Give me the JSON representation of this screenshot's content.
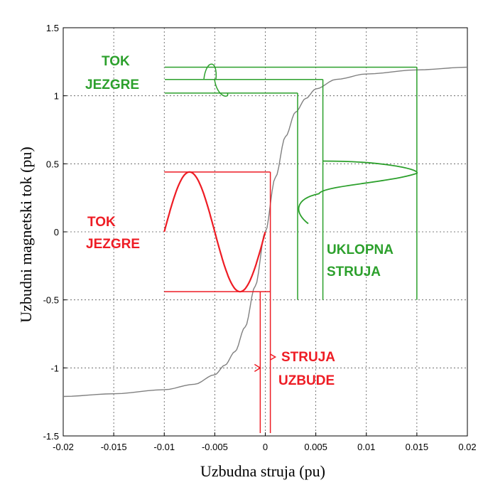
{
  "chart_data": {
    "type": "line",
    "title": "",
    "xlabel": "Uzbudna struja (pu)",
    "ylabel": "Uzbudni magnetski tok (pu)",
    "xlim": [
      -0.02,
      0.02
    ],
    "ylim": [
      -1.5,
      1.5
    ],
    "x_ticks": [
      -0.02,
      -0.015,
      -0.01,
      -0.005,
      0,
      0.005,
      0.01,
      0.015,
      0.02
    ],
    "y_ticks": [
      -1.5,
      -1,
      -0.5,
      0,
      0.5,
      1,
      1.5
    ],
    "x_tick_labels": [
      "-0.02",
      "-0.015",
      "-0.01",
      "-0.005",
      "0",
      "0.005",
      "0.01",
      "0.015",
      "0.02"
    ],
    "y_tick_labels": [
      "-1.5",
      "-1",
      "-0.5",
      "0",
      "0.5",
      "1",
      "1.5"
    ],
    "grid": true,
    "series": [
      {
        "color": "#808080",
        "x": [
          -0.02,
          -0.015,
          -0.01,
          -0.007,
          -0.005,
          -0.004,
          -0.003,
          -0.002,
          -0.001,
          0,
          0.001,
          0.002,
          0.003,
          0.004,
          0.005,
          0.007,
          0.01,
          0.015,
          0.02
        ],
        "y": [
          -1.21,
          -1.19,
          -1.16,
          -1.12,
          -1.05,
          -0.98,
          -0.88,
          -0.7,
          -0.4,
          0,
          0.4,
          0.7,
          0.88,
          0.98,
          1.05,
          1.12,
          1.16,
          1.19,
          1.21
        ]
      }
    ],
    "annotations": {
      "steady": {
        "color": "#ee1c24",
        "flux_amplitude": 0.44,
        "current_lines_x": [
          -0.0005,
          0.0005
        ],
        "wave_x_range": [
          -0.01,
          0
        ],
        "text_flux": [
          "TOK",
          "JEZGRE"
        ],
        "text_current": [
          "STRUJA",
          "UZBUDE"
        ]
      },
      "inrush": {
        "color": "#2ca02c",
        "flux_levels": [
          1.21,
          1.12,
          1.02
        ],
        "current_lines_x": [
          0.0032,
          0.0057,
          0.015
        ],
        "text_flux": [
          "TOK",
          "JEZGRE"
        ],
        "text_current": [
          "UKLOPNA",
          "STRUJA"
        ]
      }
    }
  }
}
